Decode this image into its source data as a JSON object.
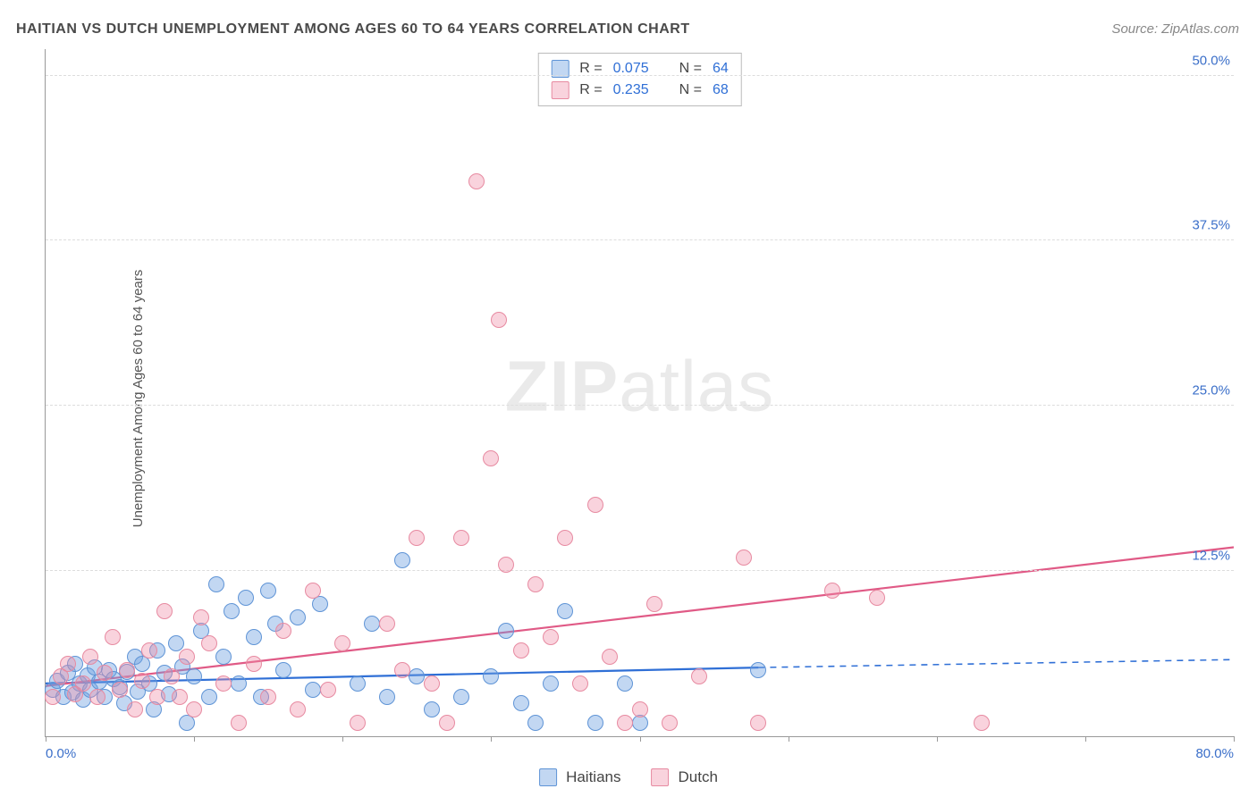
{
  "title": "HAITIAN VS DUTCH UNEMPLOYMENT AMONG AGES 60 TO 64 YEARS CORRELATION CHART",
  "source": "Source: ZipAtlas.com",
  "ylabel": "Unemployment Among Ages 60 to 64 years",
  "watermark_bold": "ZIP",
  "watermark_rest": "atlas",
  "chart": {
    "type": "scatter",
    "xlim": [
      0,
      80
    ],
    "ylim": [
      0,
      52
    ],
    "xticks": [
      0,
      10,
      20,
      30,
      40,
      50,
      60,
      70,
      80
    ],
    "xtick_labels": {
      "0": "0.0%",
      "80": "80.0%"
    },
    "yticks": [
      12.5,
      25.0,
      37.5,
      50.0
    ],
    "ytick_labels": [
      "12.5%",
      "25.0%",
      "37.5%",
      "50.0%"
    ],
    "background_color": "#ffffff",
    "grid_color": "#dddddd",
    "marker_radius": 9,
    "axis_label_color": "#3b6fc9",
    "series": [
      {
        "name": "Haitians",
        "fill": "rgba(109,160,225,0.42)",
        "stroke": "#5f94d6",
        "r": 0.075,
        "n": 64,
        "trend": {
          "x1": 0,
          "y1": 4.0,
          "x2": 48,
          "y2": 5.2,
          "dash_to_x": 80,
          "dash_to_y": 5.8,
          "color": "#2f6fd6",
          "width": 2.2
        },
        "points": [
          [
            0.5,
            3.5
          ],
          [
            0.8,
            4.2
          ],
          [
            1.2,
            3.0
          ],
          [
            1.5,
            4.8
          ],
          [
            1.8,
            3.3
          ],
          [
            2.0,
            5.5
          ],
          [
            2.3,
            4.0
          ],
          [
            2.5,
            2.8
          ],
          [
            2.8,
            4.6
          ],
          [
            3.0,
            3.5
          ],
          [
            3.3,
            5.2
          ],
          [
            3.6,
            4.1
          ],
          [
            4.0,
            3.0
          ],
          [
            4.3,
            5.0
          ],
          [
            4.6,
            4.3
          ],
          [
            5.0,
            3.7
          ],
          [
            5.3,
            2.5
          ],
          [
            5.5,
            4.9
          ],
          [
            6.0,
            6.0
          ],
          [
            6.2,
            3.4
          ],
          [
            6.5,
            5.5
          ],
          [
            7.0,
            4.0
          ],
          [
            7.3,
            2.0
          ],
          [
            7.5,
            6.5
          ],
          [
            8.0,
            4.8
          ],
          [
            8.3,
            3.2
          ],
          [
            8.8,
            7.0
          ],
          [
            9.2,
            5.3
          ],
          [
            9.5,
            1.0
          ],
          [
            10.0,
            4.5
          ],
          [
            10.5,
            8.0
          ],
          [
            11.0,
            3.0
          ],
          [
            11.5,
            11.5
          ],
          [
            12.0,
            6.0
          ],
          [
            12.5,
            9.5
          ],
          [
            13.0,
            4.0
          ],
          [
            13.5,
            10.5
          ],
          [
            14.0,
            7.5
          ],
          [
            14.5,
            3.0
          ],
          [
            15.0,
            11.0
          ],
          [
            15.5,
            8.5
          ],
          [
            16.0,
            5.0
          ],
          [
            17.0,
            9.0
          ],
          [
            18.0,
            3.5
          ],
          [
            18.5,
            10.0
          ],
          [
            21.0,
            4.0
          ],
          [
            22.0,
            8.5
          ],
          [
            23.0,
            3.0
          ],
          [
            24.0,
            13.3
          ],
          [
            25.0,
            4.5
          ],
          [
            26.0,
            2.0
          ],
          [
            28.0,
            3.0
          ],
          [
            30.0,
            4.5
          ],
          [
            31.0,
            8.0
          ],
          [
            32.0,
            2.5
          ],
          [
            33.0,
            1.0
          ],
          [
            34.0,
            4.0
          ],
          [
            35.0,
            9.5
          ],
          [
            37.0,
            1.0
          ],
          [
            39.0,
            4.0
          ],
          [
            40.0,
            1.0
          ],
          [
            48.0,
            5.0
          ]
        ]
      },
      {
        "name": "Dutch",
        "fill": "rgba(240,140,165,0.38)",
        "stroke": "#e78aa1",
        "r": 0.235,
        "n": 68,
        "trend": {
          "x1": 0,
          "y1": 3.8,
          "x2": 80,
          "y2": 14.3,
          "color": "#e05a86",
          "width": 2.2
        },
        "points": [
          [
            0.5,
            3.0
          ],
          [
            1.0,
            4.5
          ],
          [
            1.5,
            5.5
          ],
          [
            2.0,
            3.2
          ],
          [
            2.5,
            4.0
          ],
          [
            3.0,
            6.0
          ],
          [
            3.5,
            3.0
          ],
          [
            4.0,
            4.8
          ],
          [
            4.5,
            7.5
          ],
          [
            5.0,
            3.5
          ],
          [
            5.5,
            5.0
          ],
          [
            6.0,
            2.0
          ],
          [
            6.5,
            4.2
          ],
          [
            7.0,
            6.5
          ],
          [
            7.5,
            3.0
          ],
          [
            8.0,
            9.5
          ],
          [
            8.5,
            4.5
          ],
          [
            9.0,
            3.0
          ],
          [
            9.5,
            6.0
          ],
          [
            10.0,
            2.0
          ],
          [
            10.5,
            9.0
          ],
          [
            11.0,
            7.0
          ],
          [
            12.0,
            4.0
          ],
          [
            13.0,
            1.0
          ],
          [
            14.0,
            5.5
          ],
          [
            15.0,
            3.0
          ],
          [
            16.0,
            8.0
          ],
          [
            17.0,
            2.0
          ],
          [
            18.0,
            11.0
          ],
          [
            19.0,
            3.5
          ],
          [
            20.0,
            7.0
          ],
          [
            21.0,
            1.0
          ],
          [
            23.0,
            8.5
          ],
          [
            24.0,
            5.0
          ],
          [
            25.0,
            15.0
          ],
          [
            26.0,
            4.0
          ],
          [
            27.0,
            1.0
          ],
          [
            28.0,
            15.0
          ],
          [
            29.0,
            42.0
          ],
          [
            30.0,
            21.0
          ],
          [
            30.5,
            31.5
          ],
          [
            31.0,
            13.0
          ],
          [
            32.0,
            6.5
          ],
          [
            33.0,
            11.5
          ],
          [
            34.0,
            7.5
          ],
          [
            35.0,
            15.0
          ],
          [
            36.0,
            4.0
          ],
          [
            37.0,
            17.5
          ],
          [
            38.0,
            6.0
          ],
          [
            39.0,
            1.0
          ],
          [
            40.0,
            2.0
          ],
          [
            41.0,
            10.0
          ],
          [
            42.0,
            1.0
          ],
          [
            44.0,
            4.5
          ],
          [
            47.0,
            13.5
          ],
          [
            48.0,
            1.0
          ],
          [
            53.0,
            11.0
          ],
          [
            56.0,
            10.5
          ],
          [
            63.0,
            1.0
          ]
        ]
      }
    ],
    "legend_bottom": [
      {
        "label": "Haitians",
        "fill": "rgba(109,160,225,0.42)",
        "stroke": "#5f94d6"
      },
      {
        "label": "Dutch",
        "fill": "rgba(240,140,165,0.38)",
        "stroke": "#e78aa1"
      }
    ]
  }
}
